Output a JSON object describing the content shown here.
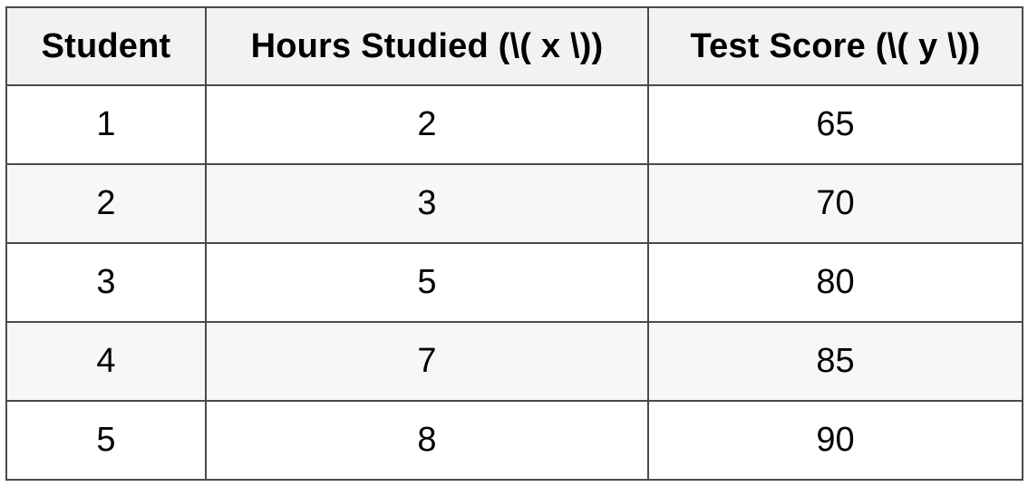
{
  "table": {
    "headers": [
      "Student",
      "Hours Studied (\\( x \\))",
      "Test Score (\\( y \\))"
    ],
    "rows": [
      [
        "1",
        "2",
        "65"
      ],
      [
        "2",
        "3",
        "70"
      ],
      [
        "3",
        "5",
        "80"
      ],
      [
        "4",
        "7",
        "85"
      ],
      [
        "5",
        "8",
        "90"
      ]
    ]
  },
  "chart_data": {
    "type": "table",
    "columns": [
      "Student",
      "Hours Studied (\\( x \\))",
      "Test Score (\\( y \\))"
    ],
    "rows": [
      [
        1,
        2,
        65
      ],
      [
        2,
        3,
        70
      ],
      [
        3,
        5,
        80
      ],
      [
        4,
        7,
        85
      ],
      [
        5,
        8,
        90
      ]
    ]
  }
}
